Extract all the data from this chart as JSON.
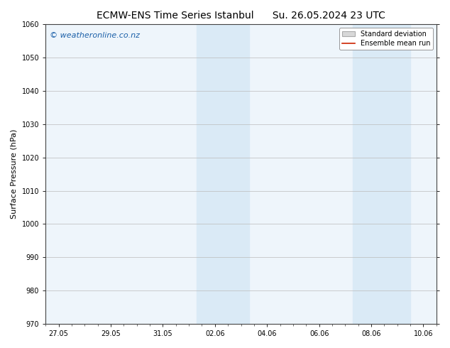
{
  "title_left": "ECMW-ENS Time Series Istanbul",
  "title_right": "Su. 26.05.2024 23 UTC",
  "ylabel": "Surface Pressure (hPa)",
  "ylim": [
    970,
    1060
  ],
  "yticks": [
    970,
    980,
    990,
    1000,
    1010,
    1020,
    1030,
    1040,
    1050,
    1060
  ],
  "xtick_labels": [
    "27.05",
    "29.05",
    "31.05",
    "02.06",
    "04.06",
    "06.06",
    "08.06",
    "10.06"
  ],
  "xtick_positions": [
    0,
    2,
    4,
    6,
    8,
    10,
    12,
    14
  ],
  "xlim": [
    -0.5,
    14.5
  ],
  "shaded_bands": [
    {
      "x_start": 5.3,
      "x_end": 7.3
    },
    {
      "x_start": 11.3,
      "x_end": 13.5
    }
  ],
  "shade_color": "#daeaf6",
  "watermark_text": "© weatheronline.co.nz",
  "watermark_color": "#1a5fa8",
  "watermark_fontsize": 8,
  "legend_std_label": "Standard deviation",
  "legend_mean_label": "Ensemble mean run",
  "legend_std_facecolor": "#d8d8d8",
  "legend_std_edgecolor": "#aaaaaa",
  "legend_mean_color": "#cc2200",
  "background_color": "#ffffff",
  "plot_bg_color": "#eef5fb",
  "grid_color": "#bbbbbb",
  "title_fontsize": 10,
  "axis_fontsize": 7,
  "ylabel_fontsize": 8,
  "legend_fontsize": 7
}
